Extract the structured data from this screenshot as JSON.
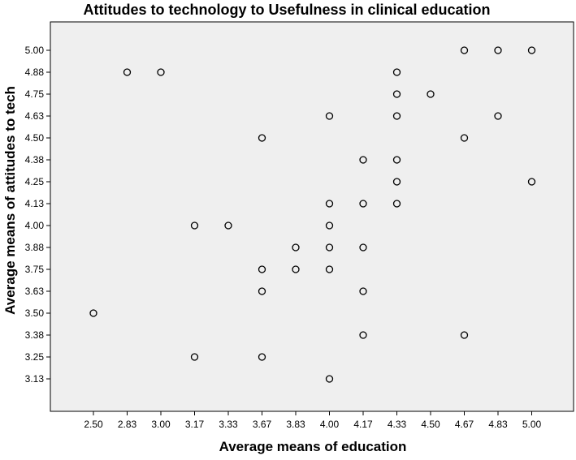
{
  "chart_data": {
    "type": "scatter",
    "title": "Attitudes to technology to Usefulness in clinical education",
    "xlabel": "Average means of education",
    "ylabel": "Average means of attitudes to tech",
    "x_ticks": [
      "2.50",
      "2.83",
      "3.00",
      "3.17",
      "3.33",
      "3.67",
      "3.83",
      "4.00",
      "4.17",
      "4.33",
      "4.50",
      "4.67",
      "4.83",
      "5.00"
    ],
    "y_ticks": [
      "5.00",
      "4.88",
      "4.75",
      "4.63",
      "4.50",
      "4.38",
      "4.25",
      "4.13",
      "4.00",
      "3.88",
      "3.75",
      "3.63",
      "3.50",
      "3.38",
      "3.25",
      "3.13"
    ],
    "grid": false,
    "marker": "open-circle",
    "points": [
      {
        "x": "4.67",
        "y": "5.00"
      },
      {
        "x": "4.83",
        "y": "5.00"
      },
      {
        "x": "5.00",
        "y": "5.00"
      },
      {
        "x": "2.83",
        "y": "4.88"
      },
      {
        "x": "3.00",
        "y": "4.88"
      },
      {
        "x": "4.33",
        "y": "4.88"
      },
      {
        "x": "4.33",
        "y": "4.75"
      },
      {
        "x": "4.50",
        "y": "4.75"
      },
      {
        "x": "4.00",
        "y": "4.63"
      },
      {
        "x": "4.33",
        "y": "4.63"
      },
      {
        "x": "4.83",
        "y": "4.63"
      },
      {
        "x": "3.67",
        "y": "4.50"
      },
      {
        "x": "4.67",
        "y": "4.50"
      },
      {
        "x": "4.17",
        "y": "4.38"
      },
      {
        "x": "4.33",
        "y": "4.38"
      },
      {
        "x": "4.33",
        "y": "4.25"
      },
      {
        "x": "5.00",
        "y": "4.25"
      },
      {
        "x": "4.00",
        "y": "4.13"
      },
      {
        "x": "4.17",
        "y": "4.13"
      },
      {
        "x": "4.33",
        "y": "4.13"
      },
      {
        "x": "3.17",
        "y": "4.00"
      },
      {
        "x": "3.33",
        "y": "4.00"
      },
      {
        "x": "4.00",
        "y": "4.00"
      },
      {
        "x": "3.83",
        "y": "3.88"
      },
      {
        "x": "4.00",
        "y": "3.88"
      },
      {
        "x": "4.17",
        "y": "3.88"
      },
      {
        "x": "3.67",
        "y": "3.75"
      },
      {
        "x": "3.83",
        "y": "3.75"
      },
      {
        "x": "4.00",
        "y": "3.75"
      },
      {
        "x": "3.67",
        "y": "3.63"
      },
      {
        "x": "4.17",
        "y": "3.63"
      },
      {
        "x": "2.50",
        "y": "3.50"
      },
      {
        "x": "4.17",
        "y": "3.38"
      },
      {
        "x": "4.67",
        "y": "3.38"
      },
      {
        "x": "3.17",
        "y": "3.25"
      },
      {
        "x": "3.67",
        "y": "3.25"
      },
      {
        "x": "4.00",
        "y": "3.13"
      }
    ],
    "colors": {
      "plot_background": "#efefef",
      "marker": "#000000"
    }
  }
}
